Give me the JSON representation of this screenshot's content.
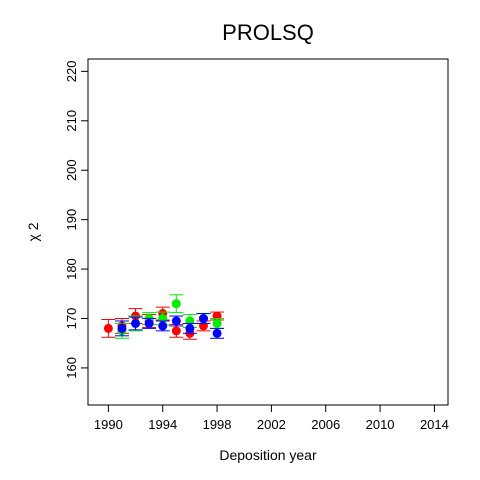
{
  "chart_data": {
    "type": "scatter",
    "title": "PROLSQ",
    "xlabel": "Deposition year",
    "ylabel": "χ 2",
    "xlim": [
      1988.5,
      2015
    ],
    "ylim": [
      152.5,
      222.5
    ],
    "xticks": [
      1990,
      1994,
      1998,
      2002,
      2006,
      2010,
      2014
    ],
    "yticks": [
      160,
      170,
      180,
      190,
      200,
      210,
      220
    ],
    "grid": false,
    "legend": "none",
    "series": [
      {
        "color": "#ff0000",
        "points": [
          {
            "x": 1990,
            "y": 168.0,
            "err": 1.8
          },
          {
            "x": 1991,
            "y": 168.5,
            "err": 1.5
          },
          {
            "x": 1992,
            "y": 170.5,
            "err": 1.5
          },
          {
            "x": 1993,
            "y": 169.5,
            "err": 1.3
          },
          {
            "x": 1994,
            "y": 171.0,
            "err": 1.3
          },
          {
            "x": 1995,
            "y": 167.5,
            "err": 1.3
          },
          {
            "x": 1996,
            "y": 167.0,
            "err": 1.2
          },
          {
            "x": 1997,
            "y": 168.5,
            "err": 1.0
          },
          {
            "x": 1998,
            "y": 170.5,
            "err": 0.8
          }
        ]
      },
      {
        "color": "#00ee00",
        "points": [
          {
            "x": 1991,
            "y": 167.5,
            "err": 1.5
          },
          {
            "x": 1992,
            "y": 169.0,
            "err": 1.5
          },
          {
            "x": 1993,
            "y": 170.0,
            "err": 1.2
          },
          {
            "x": 1994,
            "y": 170.0,
            "err": 1.3
          },
          {
            "x": 1995,
            "y": 173.0,
            "err": 1.8
          },
          {
            "x": 1996,
            "y": 169.5,
            "err": 1.3
          },
          {
            "x": 1997,
            "y": 170.0,
            "err": 1.0
          },
          {
            "x": 1998,
            "y": 169.0,
            "err": 1.0
          }
        ]
      },
      {
        "color": "#0000ff",
        "points": [
          {
            "x": 1991,
            "y": 168.0,
            "err": 1.5
          },
          {
            "x": 1992,
            "y": 169.0,
            "err": 1.3
          },
          {
            "x": 1993,
            "y": 169.0,
            "err": 1.0
          },
          {
            "x": 1994,
            "y": 168.5,
            "err": 1.0
          },
          {
            "x": 1995,
            "y": 169.5,
            "err": 1.0
          },
          {
            "x": 1996,
            "y": 168.0,
            "err": 1.0
          },
          {
            "x": 1997,
            "y": 170.0,
            "err": 1.0
          },
          {
            "x": 1998,
            "y": 167.0,
            "err": 1.0
          }
        ]
      }
    ]
  }
}
